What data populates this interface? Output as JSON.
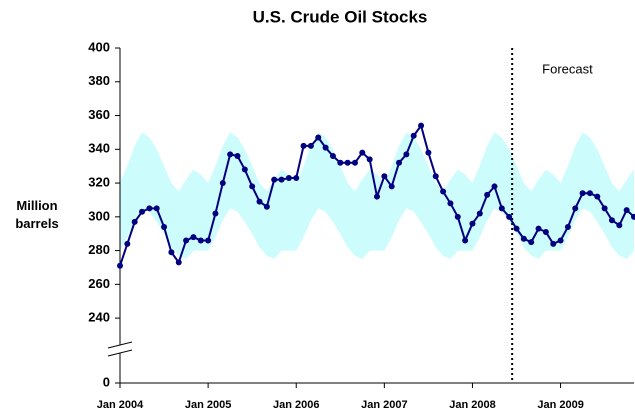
{
  "chart_data": {
    "type": "line",
    "title": "U.S. Crude Oil Stocks",
    "y_label": "Million barrels",
    "x": [
      "2004-01",
      "2004-02",
      "2004-03",
      "2004-04",
      "2004-05",
      "2004-06",
      "2004-07",
      "2004-08",
      "2004-09",
      "2004-10",
      "2004-11",
      "2004-12",
      "2005-01",
      "2005-02",
      "2005-03",
      "2005-04",
      "2005-05",
      "2005-06",
      "2005-07",
      "2005-08",
      "2005-09",
      "2005-10",
      "2005-11",
      "2005-12",
      "2006-01",
      "2006-02",
      "2006-03",
      "2006-04",
      "2006-05",
      "2006-06",
      "2006-07",
      "2006-08",
      "2006-09",
      "2006-10",
      "2006-11",
      "2006-12",
      "2007-01",
      "2007-02",
      "2007-03",
      "2007-04",
      "2007-05",
      "2007-06",
      "2007-07",
      "2007-08",
      "2007-09",
      "2007-10",
      "2007-11",
      "2007-12",
      "2008-01",
      "2008-02",
      "2008-03",
      "2008-04",
      "2008-05",
      "2008-06",
      "2008-07",
      "2008-08",
      "2008-09",
      "2008-10",
      "2008-11",
      "2008-12",
      "2009-01",
      "2009-02",
      "2009-03",
      "2009-04",
      "2009-05",
      "2009-06",
      "2009-07",
      "2009-08",
      "2009-09",
      "2009-10",
      "2009-11"
    ],
    "series": [
      {
        "color": "#000080",
        "values": [
          271,
          284,
          297,
          303,
          305,
          305,
          294,
          279,
          273,
          286,
          288,
          286,
          286,
          302,
          320,
          337,
          336,
          328,
          318,
          309,
          306,
          322,
          322,
          323,
          323,
          342,
          342,
          347,
          341,
          336,
          332,
          332,
          332,
          338,
          334,
          312,
          324,
          318,
          332,
          337,
          348,
          354,
          338,
          324,
          315,
          308,
          300,
          286,
          296,
          302,
          313,
          318,
          305,
          300,
          293,
          287,
          285,
          293,
          291,
          284,
          286,
          294,
          305,
          314,
          314,
          312,
          305,
          298,
          295,
          304,
          300
        ]
      }
    ],
    "band": {
      "color": "#ccfcfc",
      "upper": [
        320,
        330,
        342,
        350,
        347,
        340,
        330,
        320,
        315,
        322,
        328,
        325,
        320,
        330,
        342,
        350,
        347,
        340,
        330,
        320,
        315,
        322,
        328,
        325,
        320,
        330,
        342,
        350,
        347,
        340,
        330,
        320,
        315,
        322,
        328,
        325,
        320,
        330,
        342,
        350,
        347,
        340,
        330,
        320,
        315,
        322,
        328,
        325,
        320,
        330,
        342,
        350,
        347,
        340,
        330,
        320,
        315,
        322,
        328,
        325,
        320,
        330,
        342,
        350,
        347,
        340,
        330,
        320,
        315,
        322,
        328
      ],
      "lower": [
        280,
        288,
        298,
        305,
        303,
        297,
        290,
        282,
        277,
        275,
        280,
        280,
        280,
        288,
        298,
        305,
        303,
        297,
        290,
        282,
        277,
        275,
        280,
        280,
        280,
        288,
        298,
        305,
        303,
        297,
        290,
        282,
        277,
        275,
        280,
        280,
        280,
        288,
        298,
        305,
        303,
        297,
        290,
        282,
        277,
        275,
        280,
        280,
        280,
        288,
        298,
        305,
        303,
        297,
        290,
        282,
        277,
        275,
        280,
        280,
        280,
        288,
        298,
        305,
        303,
        297,
        290,
        282,
        277,
        275,
        280
      ]
    },
    "forecast": {
      "x": "2008-06",
      "label": "Forecast"
    },
    "xlim": [
      "2004-01",
      "2009-11"
    ],
    "xticks": [
      {
        "value": "2004-01",
        "label": "Jan 2004"
      },
      {
        "value": "2005-01",
        "label": "Jan 2005"
      },
      {
        "value": "2006-01",
        "label": "Jan 2006"
      },
      {
        "value": "2007-01",
        "label": "Jan 2007"
      },
      {
        "value": "2008-01",
        "label": "Jan 2008"
      },
      {
        "value": "2009-01",
        "label": "Jan 2009"
      }
    ],
    "ylim": [
      0,
      400
    ],
    "axis_break": [
      0,
      230
    ],
    "yticks": [
      0,
      240,
      260,
      280,
      300,
      320,
      340,
      360,
      380,
      400
    ]
  }
}
